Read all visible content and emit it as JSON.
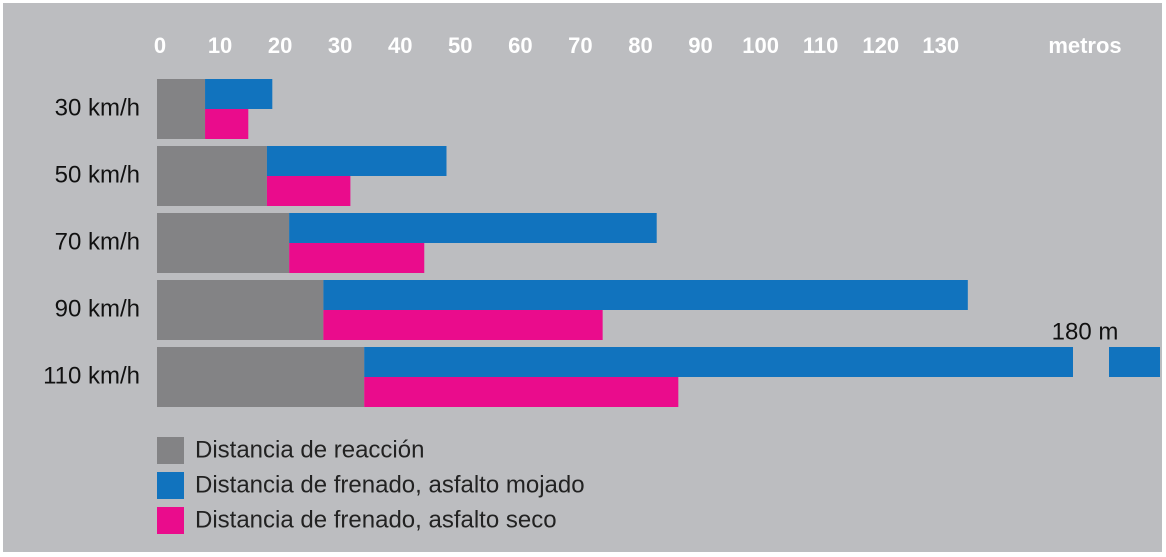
{
  "chart_data": {
    "type": "bar",
    "orientation": "horizontal",
    "categories": [
      "30 km/h",
      "50 km/h",
      "70 km/h",
      "90 km/h",
      "110 km/h"
    ],
    "series": [
      {
        "name": "Distancia de reacción",
        "color": "#838385",
        "values": [
          8,
          18.3,
          22,
          27.7,
          34.5
        ]
      },
      {
        "name": "Distancia de frenado, asfalto mojado",
        "color": "#1173be",
        "values": [
          11.2,
          29.9,
          61.2,
          107.3,
          145.5
        ],
        "stacked_on": 0
      },
      {
        "name": "Distancia de frenado, asfalto seco",
        "color": "#ea0c8c",
        "values": [
          7.2,
          13.9,
          22.5,
          46.5,
          52.3
        ],
        "stacked_on": 0
      }
    ],
    "xlabel": "metros",
    "xlim": [
      0,
      167
    ],
    "xticks": [
      0,
      10,
      20,
      30,
      40,
      50,
      60,
      70,
      80,
      90,
      100,
      110,
      120,
      130
    ],
    "annotation": "180 m",
    "axis_break": true,
    "background": "#bcbdc0"
  }
}
